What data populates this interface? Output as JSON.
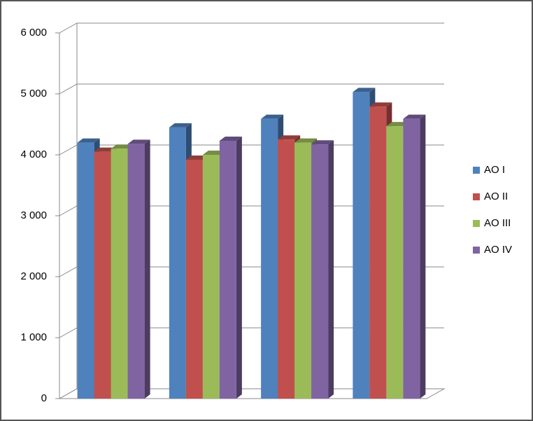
{
  "chart_data": {
    "type": "bar3d",
    "categories": [
      null,
      null,
      null,
      null
    ],
    "series": [
      {
        "name": "AO I",
        "color": "#4f81bd",
        "values": [
          4200,
          4450,
          4590,
          5030
        ]
      },
      {
        "name": "AO II",
        "color": "#c0504d",
        "values": [
          4050,
          3920,
          4250,
          4790
        ]
      },
      {
        "name": "AO III",
        "color": "#9bbb59",
        "values": [
          4100,
          4000,
          4200,
          4470
        ]
      },
      {
        "name": "AO IV",
        "color": "#8064a2",
        "values": [
          4180,
          4230,
          4170,
          4590
        ]
      }
    ],
    "ylim": [
      0,
      6000
    ],
    "yticks": [
      {
        "value": 0,
        "label": "0"
      },
      {
        "value": 1000,
        "label": "1 000"
      },
      {
        "value": 2000,
        "label": "2 000"
      },
      {
        "value": 3000,
        "label": "3 000"
      },
      {
        "value": 4000,
        "label": "4 000"
      },
      {
        "value": 5000,
        "label": "5 000"
      },
      {
        "value": 6000,
        "label": "6 000"
      }
    ],
    "grid": true,
    "legend": "right"
  }
}
